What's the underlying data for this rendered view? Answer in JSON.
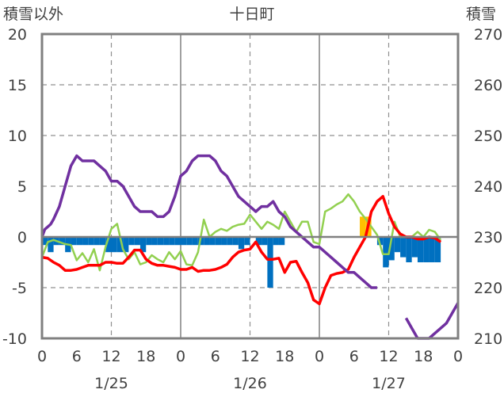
{
  "chart_data": {
    "type": "line",
    "title": "十日町",
    "left_axis_label": "積雪以外",
    "right_axis_label": "積雪",
    "left_ylim": [
      -10,
      20
    ],
    "right_ylim": [
      210,
      270
    ],
    "left_ticks": [
      "20",
      "15",
      "10",
      "5",
      "0",
      "-5",
      "-10"
    ],
    "right_ticks": [
      "270",
      "260",
      "250",
      "240",
      "230",
      "220",
      "210"
    ],
    "x_range_hours": [
      0,
      72
    ],
    "x_tick_labels": [
      "0",
      "6",
      "12",
      "18",
      "0",
      "6",
      "12",
      "18",
      "0",
      "6",
      "12",
      "18",
      "0"
    ],
    "date_labels": [
      "1/25",
      "1/26",
      "1/27"
    ],
    "grid": "dashed vertical lines every 12 hours, solid at day boundaries",
    "colors": {
      "snow_depth": "#7030a0",
      "temperature": "#ff0000",
      "wind": "#92d050",
      "precip_bars": "#0070c0",
      "snowfall_bars": "#ffc000"
    },
    "series": [
      {
        "axis": "right",
        "color": "#7030a0",
        "points": [
          [
            0,
            230
          ],
          [
            0.5,
            231.5
          ],
          [
            1,
            232
          ],
          [
            1.5,
            232.5
          ],
          [
            2,
            233.5
          ],
          [
            3,
            236
          ],
          [
            4,
            240
          ],
          [
            5,
            244
          ],
          [
            6,
            246
          ],
          [
            7,
            245
          ],
          [
            9,
            245
          ],
          [
            10,
            244
          ],
          [
            11,
            243
          ],
          [
            12,
            241
          ],
          [
            13,
            241
          ],
          [
            14,
            240
          ],
          [
            15,
            238
          ],
          [
            16,
            236
          ],
          [
            17,
            235
          ],
          [
            19,
            235
          ],
          [
            20,
            234
          ],
          [
            21,
            234
          ],
          [
            22,
            235
          ],
          [
            23,
            238
          ],
          [
            24,
            242
          ],
          [
            25,
            243
          ],
          [
            26,
            245
          ],
          [
            27,
            246
          ],
          [
            29,
            246
          ],
          [
            30,
            245
          ],
          [
            31,
            243
          ],
          [
            32,
            242
          ],
          [
            33,
            240
          ],
          [
            34,
            238
          ],
          [
            35,
            237
          ],
          [
            36,
            236
          ],
          [
            37,
            235
          ],
          [
            38,
            236
          ],
          [
            39,
            236
          ],
          [
            40,
            237
          ],
          [
            41,
            235
          ],
          [
            42,
            234
          ],
          [
            43,
            232
          ],
          [
            44,
            231
          ],
          [
            45,
            230
          ],
          [
            46,
            229
          ],
          [
            47,
            228
          ],
          [
            48,
            228
          ],
          [
            49,
            227
          ],
          [
            50,
            226
          ],
          [
            51,
            225
          ],
          [
            52,
            224
          ],
          [
            53,
            223
          ],
          [
            54,
            223
          ],
          [
            55,
            222
          ],
          [
            56,
            221
          ],
          [
            57,
            220
          ],
          [
            58,
            220
          ]
        ],
        "segments_after_gap": [
          [
            63,
            214
          ],
          [
            64,
            212
          ],
          [
            65,
            210
          ],
          [
            66,
            210
          ],
          [
            67,
            210
          ],
          [
            68,
            211
          ],
          [
            69,
            212
          ],
          [
            70,
            213
          ],
          [
            71,
            215
          ],
          [
            72,
            217
          ]
        ]
      },
      {
        "axis": "left",
        "color": "#ff0000",
        "points": [
          [
            0,
            -2
          ],
          [
            1,
            -2.1
          ],
          [
            2,
            -2.5
          ],
          [
            3,
            -2.8
          ],
          [
            4,
            -3.3
          ],
          [
            5,
            -3.3
          ],
          [
            6,
            -3.2
          ],
          [
            7,
            -3
          ],
          [
            8,
            -2.8
          ],
          [
            9,
            -2.8
          ],
          [
            10,
            -2.8
          ],
          [
            11,
            -2.5
          ],
          [
            12,
            -2.5
          ],
          [
            13,
            -2.6
          ],
          [
            14,
            -2.6
          ],
          [
            15,
            -2
          ],
          [
            16,
            -1.3
          ],
          [
            17,
            -1.3
          ],
          [
            18,
            -2.2
          ],
          [
            19,
            -2.6
          ],
          [
            20,
            -2.8
          ],
          [
            21,
            -2.8
          ],
          [
            22,
            -2.9
          ],
          [
            23,
            -3
          ],
          [
            24,
            -3.2
          ],
          [
            25,
            -3.2
          ],
          [
            26,
            -3
          ],
          [
            27,
            -3.4
          ],
          [
            28,
            -3.3
          ],
          [
            29,
            -3.3
          ],
          [
            30,
            -3.2
          ],
          [
            31,
            -3
          ],
          [
            32,
            -2.7
          ],
          [
            33,
            -2
          ],
          [
            34,
            -1.5
          ],
          [
            35,
            -1.3
          ],
          [
            36,
            -1.2
          ],
          [
            37,
            -0.5
          ],
          [
            38,
            -1.5
          ],
          [
            39,
            -2.2
          ],
          [
            40,
            -2.2
          ],
          [
            41,
            -2.1
          ],
          [
            42,
            -3.5
          ],
          [
            43,
            -2.5
          ],
          [
            44,
            -2.4
          ],
          [
            45,
            -3.5
          ],
          [
            46,
            -4.5
          ],
          [
            47,
            -6.2
          ],
          [
            48,
            -6.6
          ],
          [
            49,
            -5
          ],
          [
            50,
            -3.8
          ],
          [
            51,
            -3.6
          ],
          [
            52,
            -3.5
          ],
          [
            53,
            -3.2
          ],
          [
            54,
            -2
          ],
          [
            55,
            -1
          ],
          [
            56,
            0
          ],
          [
            57,
            2.5
          ],
          [
            58,
            3.5
          ],
          [
            59,
            4
          ],
          [
            60,
            2.3
          ],
          [
            61,
            1
          ],
          [
            62,
            0.3
          ],
          [
            63,
            0
          ],
          [
            64,
            0
          ],
          [
            65,
            -0.2
          ],
          [
            66,
            -0.2
          ],
          [
            67,
            0
          ],
          [
            68,
            -0.1
          ],
          [
            69,
            -0.5
          ]
        ]
      },
      {
        "axis": "left",
        "color": "#92d050",
        "points": [
          [
            0,
            -2
          ],
          [
            1,
            -0.5
          ],
          [
            2,
            -0.3
          ],
          [
            3,
            -0.5
          ],
          [
            4,
            -0.7
          ],
          [
            5,
            -0.8
          ],
          [
            6,
            -2.3
          ],
          [
            7,
            -1.6
          ],
          [
            8,
            -2.5
          ],
          [
            9,
            -1.2
          ],
          [
            10,
            -3.3
          ],
          [
            11,
            -1
          ],
          [
            12,
            0.8
          ],
          [
            13,
            1.3
          ],
          [
            14,
            -1.2
          ],
          [
            15,
            -2.2
          ],
          [
            16,
            -1.5
          ],
          [
            17,
            -2.7
          ],
          [
            18,
            -2.5
          ],
          [
            19,
            -1.8
          ],
          [
            20,
            -2.2
          ],
          [
            21,
            -2.5
          ],
          [
            22,
            -1.5
          ],
          [
            23,
            -2.2
          ],
          [
            24,
            -1.4
          ],
          [
            25,
            -2.7
          ],
          [
            26,
            -2.8
          ],
          [
            27,
            -1.5
          ],
          [
            28,
            1.7
          ],
          [
            29,
            0
          ],
          [
            30,
            0.5
          ],
          [
            31,
            0.8
          ],
          [
            32,
            0.6
          ],
          [
            33,
            1
          ],
          [
            34,
            1.2
          ],
          [
            35,
            1.3
          ],
          [
            36,
            2.2
          ],
          [
            37,
            1.5
          ],
          [
            38,
            0.8
          ],
          [
            39,
            1.5
          ],
          [
            40,
            1.2
          ],
          [
            41,
            0.8
          ],
          [
            42,
            2.5
          ],
          [
            43,
            1.5
          ],
          [
            44,
            0.5
          ],
          [
            45,
            1.5
          ],
          [
            46,
            1.5
          ],
          [
            47,
            -0.5
          ],
          [
            48,
            -0.7
          ],
          [
            49,
            2.5
          ],
          [
            50,
            2.8
          ],
          [
            51,
            3.2
          ],
          [
            52,
            3.5
          ],
          [
            53,
            4.2
          ],
          [
            54,
            3.5
          ],
          [
            55,
            2.5
          ],
          [
            56,
            1.8
          ],
          [
            57,
            1
          ],
          [
            58,
            0.2
          ],
          [
            59,
            -1.7
          ],
          [
            60,
            -1.7
          ],
          [
            61,
            1.5
          ],
          [
            62,
            0
          ],
          [
            63,
            0
          ],
          [
            64,
            0
          ],
          [
            65,
            0.5
          ],
          [
            66,
            0
          ],
          [
            67,
            0.7
          ],
          [
            68,
            0.5
          ],
          [
            69,
            -0.3
          ]
        ]
      }
    ],
    "bars": [
      {
        "color": "#0070c0",
        "values": [
          [
            1,
            -0.8
          ],
          [
            2,
            -1.5
          ],
          [
            3,
            -0.8
          ],
          [
            4,
            -0.8
          ],
          [
            5,
            -1.5
          ],
          [
            6,
            -0.8
          ],
          [
            7,
            -0.8
          ],
          [
            8,
            -0.8
          ],
          [
            9,
            -0.8
          ],
          [
            10,
            -0.8
          ],
          [
            11,
            -0.8
          ],
          [
            12,
            -1.5
          ],
          [
            13,
            -1.5
          ],
          [
            14,
            -1.5
          ],
          [
            15,
            -1.5
          ],
          [
            16,
            -0.8
          ],
          [
            17,
            -0.8
          ],
          [
            18,
            -1.5
          ],
          [
            19,
            -0.8
          ],
          [
            20,
            -0.8
          ],
          [
            21,
            -0.8
          ],
          [
            22,
            -0.8
          ],
          [
            23,
            -0.8
          ],
          [
            24,
            -0.8
          ],
          [
            25,
            -0.8
          ],
          [
            26,
            -0.8
          ],
          [
            27,
            -0.8
          ],
          [
            28,
            -0.8
          ],
          [
            29,
            -0.8
          ],
          [
            30,
            -0.8
          ],
          [
            31,
            -0.8
          ],
          [
            32,
            -0.8
          ],
          [
            33,
            -0.8
          ],
          [
            34,
            -0.8
          ],
          [
            35,
            -0.8
          ],
          [
            36,
            -0.8
          ],
          [
            37,
            -0.8
          ],
          [
            38,
            -0.8
          ],
          [
            39,
            -0.8
          ],
          [
            40,
            -0.8
          ],
          [
            41,
            -0.8
          ],
          [
            42,
            -0.8
          ],
          [
            43,
            -0.8
          ],
          [
            44,
            -0.8
          ],
          [
            45,
            -0.8
          ],
          [
            46,
            -0.8
          ],
          [
            47,
            -0.8
          ],
          [
            48,
            -0.8
          ],
          [
            49,
            -0.8
          ],
          [
            50,
            -0.8
          ],
          [
            51,
            -0.8
          ],
          [
            52,
            -0.8
          ],
          [
            53,
            -0.8
          ],
          [
            54,
            -0.8
          ],
          [
            55,
            -0.8
          ],
          [
            56,
            -0.8
          ],
          [
            57,
            -0.8
          ],
          [
            58,
            -0.8
          ],
          [
            59,
            -0.8
          ],
          [
            60,
            -0.8
          ],
          [
            61,
            -0.8
          ],
          [
            62,
            -0.8
          ],
          [
            63,
            -0.8
          ],
          [
            64,
            -0.8
          ],
          [
            65,
            -0.8
          ],
          [
            66,
            -0.8
          ],
          [
            67,
            -0.8
          ],
          [
            68,
            -0.8
          ],
          [
            69,
            -0.8
          ]
        ],
        "override": [
          [
            35,
            -1.2
          ],
          [
            36,
            -0.8
          ],
          [
            38,
            -0.8
          ],
          [
            39,
            -0.8
          ],
          [
            40,
            -5
          ],
          [
            41,
            -0.8
          ],
          [
            42,
            -0.8
          ],
          [
            43,
            -0.8
          ],
          [
            44,
            -0.8
          ],
          [
            45,
            -0.8
          ],
          [
            46,
            -0.8
          ],
          [
            47,
            -0.8
          ],
          [
            48,
            -0.8
          ],
          [
            49,
            -0.8
          ],
          [
            50,
            -0.8
          ],
          [
            51,
            -0.8
          ],
          [
            52,
            -0.8
          ],
          [
            53,
            -0.8
          ],
          [
            54,
            -0.8
          ],
          [
            55,
            -0.8
          ],
          [
            56,
            -0.8
          ],
          [
            57,
            -0.8
          ],
          [
            58,
            -0.8
          ],
          [
            59,
            -0.8
          ],
          [
            60,
            -3
          ],
          [
            61,
            -2.3
          ],
          [
            62,
            -1.5
          ],
          [
            63,
            -2
          ],
          [
            64,
            -2.5
          ],
          [
            65,
            -2
          ],
          [
            66,
            -2.5
          ],
          [
            67,
            -2.5
          ],
          [
            68,
            -2.5
          ],
          [
            69,
            -2.5
          ]
        ]
      },
      {
        "color": "#ffc000",
        "values": [
          [
            56,
            2
          ],
          [
            57,
            2
          ]
        ]
      }
    ]
  }
}
